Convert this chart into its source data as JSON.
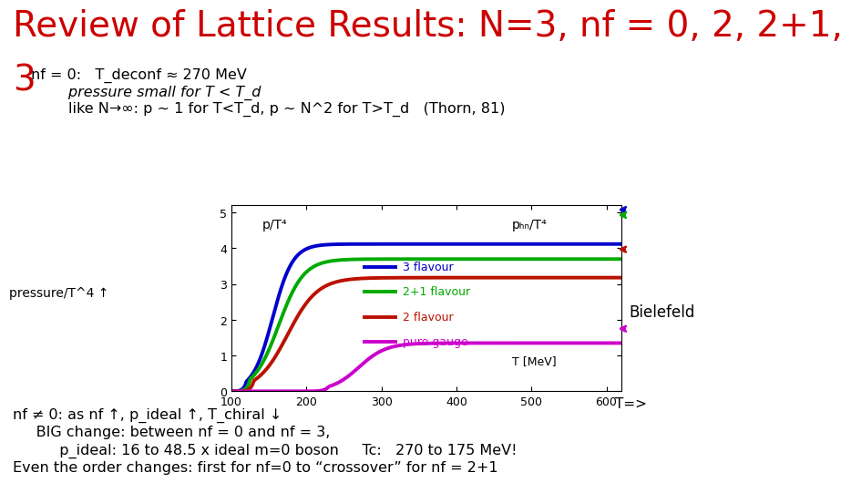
{
  "title_line1": "Review of Lattice Results: N=3, nf = 0, 2, 2+1,",
  "title_line2": "3",
  "title_color": "#cc0000",
  "title_fontsize": 28,
  "bg_color": "#ffffff",
  "text_line1": "nf = 0:   T_deconf ≈ 270 MeV",
  "text_line2": "        pressure small for T < T_d",
  "text_line3": "        like N→∞: p ~ 1 for T<T_d, p ~ N^2 for T>T_d   (Thorn, 81)",
  "text_fontsize": 11.5,
  "text_color": "#000000",
  "bottom_line1": "nf ≠ 0: as nf ↑, p_ideal ↑, T_chiral ↓",
  "bottom_line2": "     BIG change: between nf = 0 and nf = 3,",
  "bottom_line3": "          p_ideal: 16 to 48.5 x ideal m=0 boson     Tc:   270 to 175 MeV!",
  "bottom_line4": "Even the order changes: first for nf=0 to “crossover” for nf = 2+1",
  "plot_xlabel": "T [MeV]",
  "plot_ylabel_left": "p/T⁴",
  "plot_ylabel_right": "pₕₙ/T⁴",
  "plot_title_left": "pressure/T^4 ↑",
  "plot_title_right": "Bielefeld",
  "xlim": [
    100,
    620
  ],
  "ylim": [
    0,
    5.2
  ],
  "yticks": [
    0,
    1,
    2,
    3,
    4,
    5
  ],
  "xticks": [
    100,
    200,
    300,
    400,
    500,
    600
  ],
  "arrow_blue": 5.08,
  "arrow_green": 4.93,
  "arrow_brown": 3.97,
  "arrow_magenta": 1.75,
  "flavour_colors": {
    "3 flavour": "#0000cc",
    "2+1 flavour": "#00aa00",
    "2 flavour": "#bb1100",
    "pure gauge": "#cc00cc"
  },
  "line_width": 2.8
}
